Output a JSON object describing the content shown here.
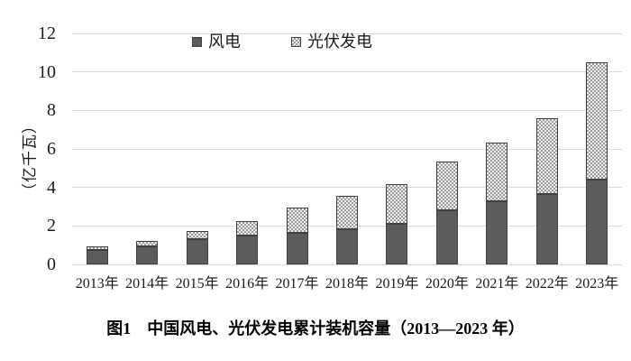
{
  "caption": "图1　中国风电、光伏发电累计装机容量（2013—2023 年）",
  "colors": {
    "wind_fill": "#5c5c5c",
    "bar_border": "#3f3f3f",
    "pattern_light": "#ededed",
    "pattern_dark": "#9b9b9b",
    "gridline": "#d9d9d9",
    "text": "#1a1a1a"
  },
  "chart_data": {
    "type": "bar",
    "stacked": true,
    "title": "图1　中国风电、光伏发电累计装机容量（2013—2023 年）",
    "ylabel": "（亿千瓦）",
    "xlabel": "",
    "ylim": [
      0,
      12
    ],
    "y_ticks": [
      0,
      2,
      4,
      6,
      8,
      10,
      12
    ],
    "grid": true,
    "legend_position": "top",
    "categories": [
      "2013年",
      "2014年",
      "2015年",
      "2016年",
      "2017年",
      "2018年",
      "2019年",
      "2020年",
      "2021年",
      "2022年",
      "2023年"
    ],
    "series": [
      {
        "name": "风电",
        "style": "solid-dark-gray",
        "values": [
          0.77,
          0.96,
          1.31,
          1.49,
          1.64,
          1.84,
          2.1,
          2.82,
          3.28,
          3.65,
          4.41
        ]
      },
      {
        "name": "光伏发电",
        "style": "checker-pattern",
        "values": [
          0.19,
          0.28,
          0.43,
          0.77,
          1.3,
          1.74,
          2.05,
          2.53,
          3.06,
          3.93,
          6.09
        ]
      }
    ]
  }
}
